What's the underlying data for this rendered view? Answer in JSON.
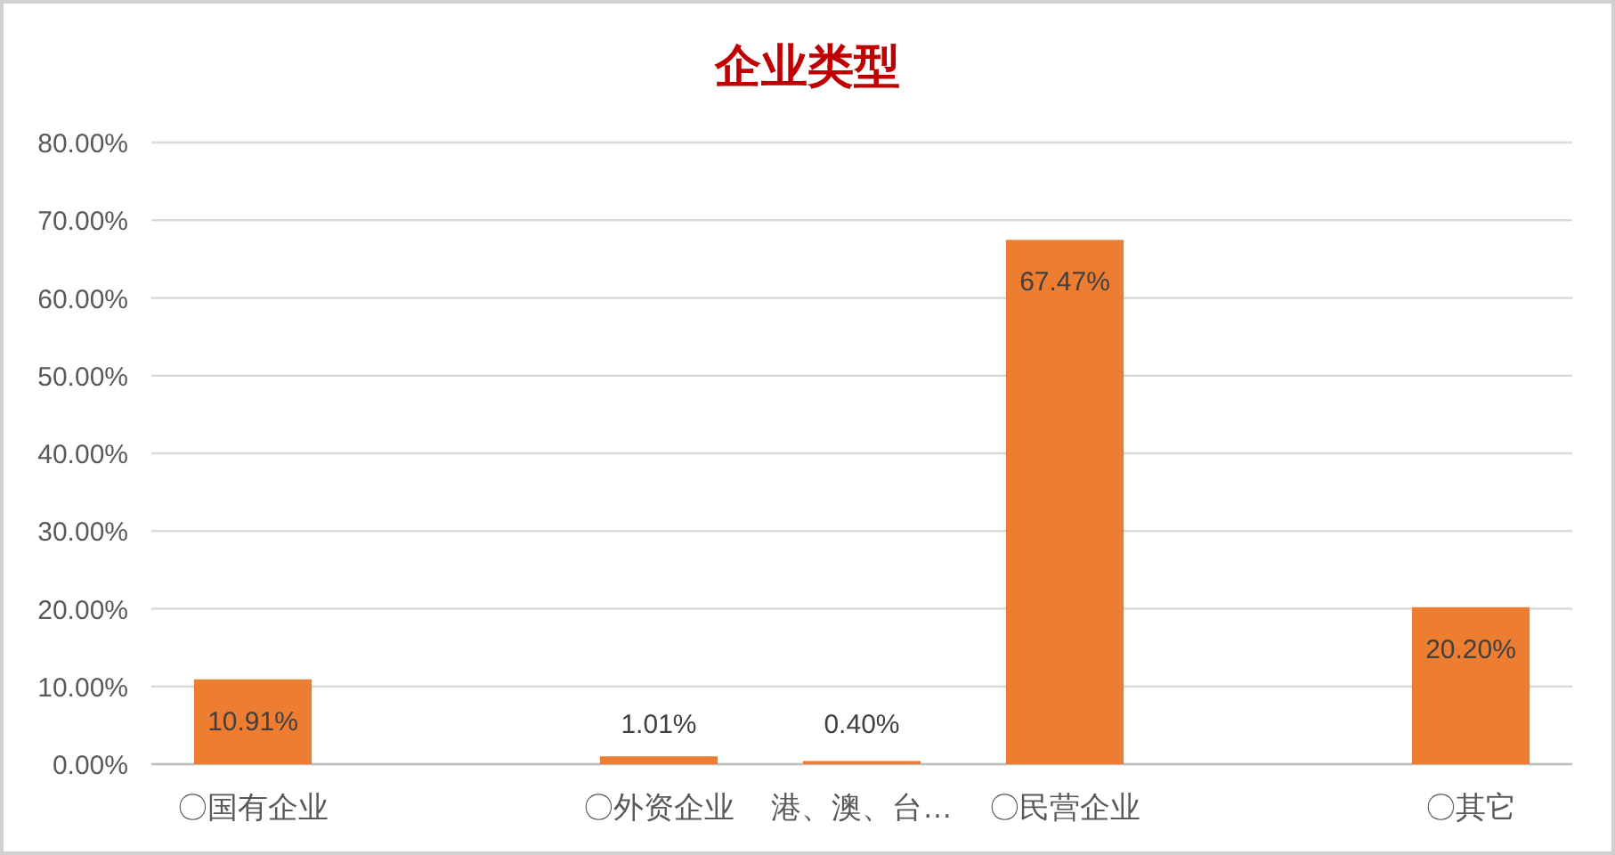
{
  "chart_data": {
    "type": "bar",
    "title": "企业类型",
    "categories": [
      "〇国有企业",
      null,
      "〇外资企业",
      "港、澳、台…",
      "〇民营企业",
      null,
      "〇其它"
    ],
    "values": [
      10.91,
      null,
      1.01,
      0.4,
      67.47,
      null,
      20.2
    ],
    "value_labels": [
      "10.91%",
      null,
      "1.01%",
      "0.40%",
      "67.47%",
      null,
      "20.20%"
    ],
    "color": "#ed7d31",
    "ylim": [
      0,
      80
    ],
    "yticks": [
      {
        "value": 0,
        "label": "0.00%"
      },
      {
        "value": 10,
        "label": "10.00%"
      },
      {
        "value": 20,
        "label": "20.00%"
      },
      {
        "value": 30,
        "label": "30.00%"
      },
      {
        "value": 40,
        "label": "40.00%"
      },
      {
        "value": 50,
        "label": "50.00%"
      },
      {
        "value": 60,
        "label": "60.00%"
      },
      {
        "value": 70,
        "label": "70.00%"
      },
      {
        "value": 80,
        "label": "80.00%"
      }
    ],
    "grid": "y"
  }
}
